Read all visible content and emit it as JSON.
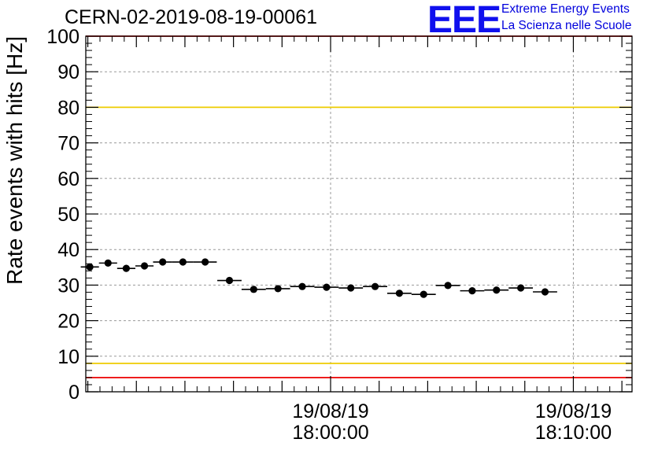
{
  "title": "CERN-02-2019-08-19-00061",
  "logo": {
    "mark": "EEE",
    "line1": "Extreme Energy Events",
    "line2": "La Scienza nelle Scuole"
  },
  "colors": {
    "limit_outer": "#ee1111",
    "limit_inner": "#eecc00",
    "marker": "#000000",
    "grid": "#999999"
  },
  "chart_data": {
    "type": "scatter",
    "title": "CERN-02-2019-08-19-00061",
    "ylabel": "Rate events with hits [Hz]",
    "xlabel": "",
    "ylim": [
      0,
      100
    ],
    "yticks": [
      0,
      10,
      20,
      30,
      40,
      50,
      60,
      70,
      80,
      90,
      100
    ],
    "xlim": [
      "19/08/19 17:49:55",
      "19/08/19 18:12:25"
    ],
    "xticks": [
      {
        "date": "19/08/19",
        "time": "18:00:00",
        "t": "18:00:00"
      },
      {
        "date": "19/08/19",
        "time": "18:10:00",
        "t": "18:10:00"
      }
    ],
    "grid": true,
    "reference_lines": [
      {
        "y": 100,
        "color": "#ee1111"
      },
      {
        "y": 80,
        "color": "#eecc00"
      },
      {
        "y": 8,
        "color": "#eecc00"
      },
      {
        "y": 4,
        "color": "#ee1111"
      }
    ],
    "points": [
      {
        "t": "17:50:05",
        "y": 35.1
      },
      {
        "t": "17:50:50",
        "y": 36.2
      },
      {
        "t": "17:51:35",
        "y": 34.7
      },
      {
        "t": "17:52:20",
        "y": 35.4
      },
      {
        "t": "17:53:05",
        "y": 36.5
      },
      {
        "t": "17:53:55",
        "y": 36.5
      },
      {
        "t": "17:54:50",
        "y": 36.5
      },
      {
        "t": "17:55:50",
        "y": 31.3
      },
      {
        "t": "17:56:50",
        "y": 28.8
      },
      {
        "t": "17:57:50",
        "y": 29.0
      },
      {
        "t": "17:58:50",
        "y": 29.6
      },
      {
        "t": "17:59:50",
        "y": 29.4
      },
      {
        "t": "18:00:50",
        "y": 29.2
      },
      {
        "t": "18:01:50",
        "y": 29.6
      },
      {
        "t": "18:02:50",
        "y": 27.7
      },
      {
        "t": "18:03:50",
        "y": 27.4
      },
      {
        "t": "18:04:50",
        "y": 29.9
      },
      {
        "t": "18:05:50",
        "y": 28.4
      },
      {
        "t": "18:06:50",
        "y": 28.6
      },
      {
        "t": "18:07:50",
        "y": 29.2
      },
      {
        "t": "18:08:50",
        "y": 28.1
      }
    ]
  }
}
